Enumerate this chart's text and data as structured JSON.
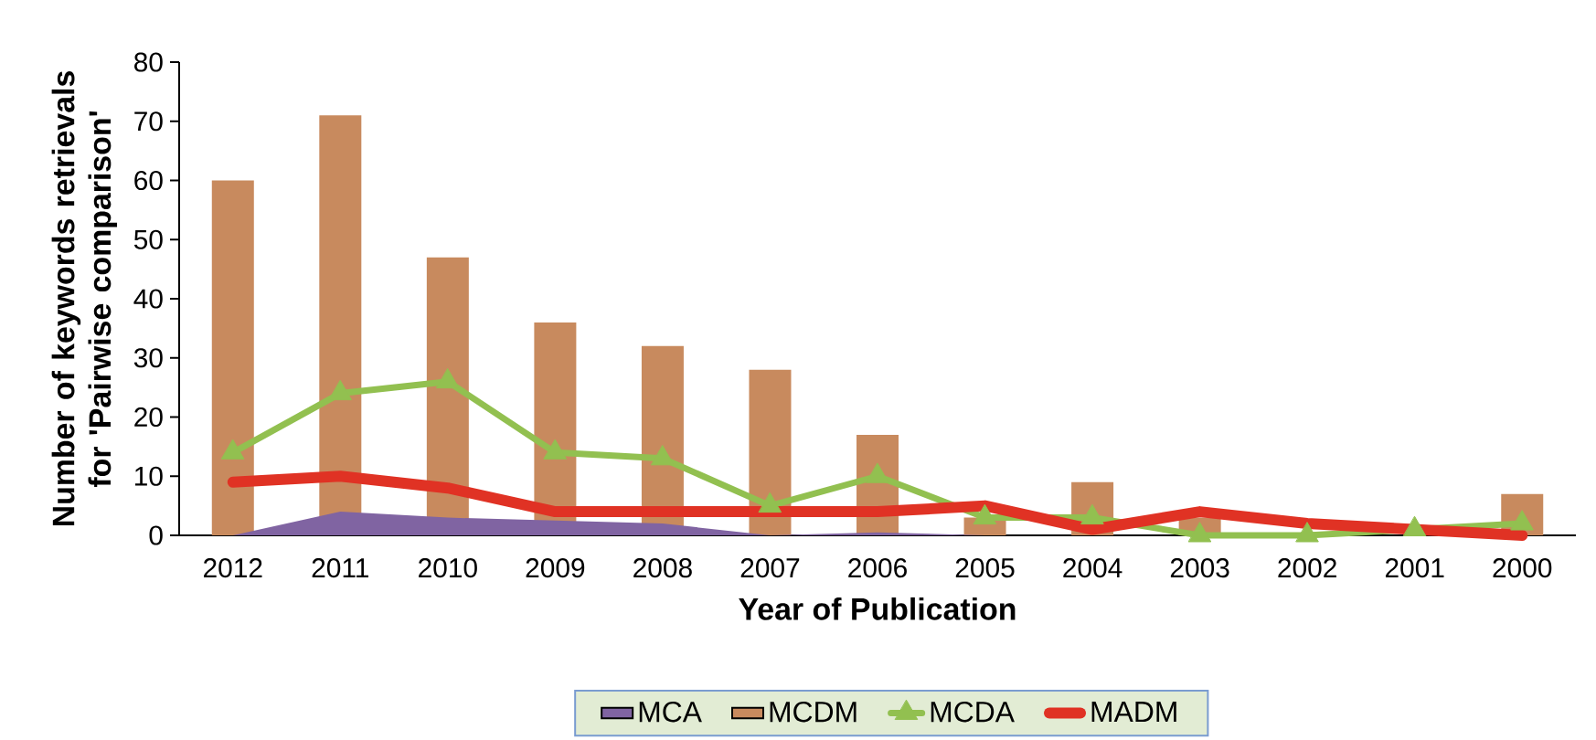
{
  "chart_data": {
    "type": "bar",
    "xlabel": "Year of Publication",
    "ylabel": "Number of keywords retrievals for 'Pairwise comparison'",
    "categories": [
      "2012",
      "2011",
      "2010",
      "2009",
      "2008",
      "2007",
      "2006",
      "2005",
      "2004",
      "2003",
      "2002",
      "2001",
      "2000"
    ],
    "series": [
      {
        "name": "MCA",
        "type": "area",
        "color": "#8064a2",
        "values": [
          0,
          4,
          3,
          2.5,
          2,
          0,
          0.5,
          0,
          0,
          0,
          0,
          0,
          0
        ]
      },
      {
        "name": "MCDM",
        "color": "#c88a5e",
        "values": [
          60,
          71,
          47,
          36,
          32,
          28,
          17,
          3,
          9,
          3,
          0,
          0,
          7
        ]
      },
      {
        "name": "MCDA",
        "type": "line",
        "color": "#92c050",
        "marker": "triangle",
        "values": [
          14,
          24,
          26,
          14,
          13,
          5,
          10,
          3,
          3,
          0,
          0,
          1,
          2
        ]
      },
      {
        "name": "MADM",
        "type": "line",
        "color": "#e03224",
        "values": [
          9,
          10,
          8,
          4,
          4,
          4,
          4,
          5,
          1,
          4,
          2,
          1,
          0
        ]
      }
    ],
    "ylim": [
      0,
      80
    ],
    "yticks": [
      0,
      10,
      20,
      30,
      40,
      50,
      60,
      70,
      80
    ],
    "legend": "bottom"
  }
}
